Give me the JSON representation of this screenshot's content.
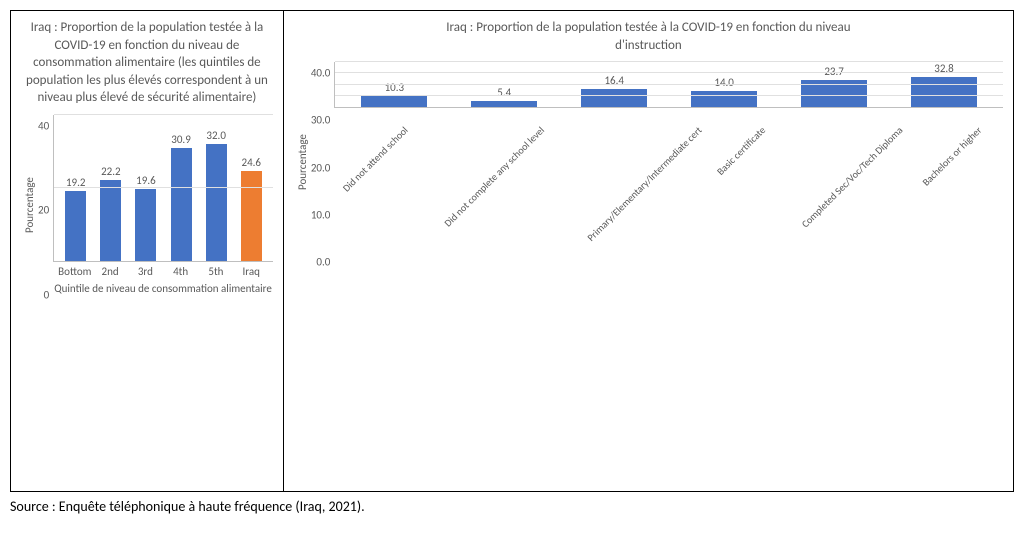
{
  "source_text": "Source : Enquête téléphonique à haute fréquence (Iraq, 2021).",
  "chart_left": {
    "type": "bar",
    "title": "Iraq : Proportion de la population testée à la COVID-19 en fonction du niveau de consommation alimentaire\n(les quintiles de population les plus élevés correspondent à un niveau plus élevé de sécurité alimentaire)",
    "y_label": "Pourcentage",
    "x_label": "Quintile de niveau de consommation alimentaire",
    "ymin": 0,
    "ymax": 40,
    "ytick_step": 20,
    "yticks": [
      "0",
      "20",
      "40"
    ],
    "grid_color": "#e0e0e0",
    "axis_color": "#bfbfbf",
    "background_color": "#ffffff",
    "title_fontsize": 13,
    "label_fontsize": 11,
    "bar_width": 0.6,
    "categories": [
      "Bottom",
      "2nd",
      "3rd",
      "4th",
      "5th",
      "Iraq"
    ],
    "values": [
      19.2,
      22.2,
      19.6,
      30.9,
      32.0,
      24.6
    ],
    "bar_colors": [
      "#4472c4",
      "#4472c4",
      "#4472c4",
      "#4472c4",
      "#4472c4",
      "#ed7d31"
    ]
  },
  "chart_right": {
    "type": "bar",
    "title": "Iraq : Proportion de la population testée à la COVID-19 en fonction du niveau d'instruction",
    "y_label": "Pourcentage",
    "ymin": 0,
    "ymax": 40,
    "ytick_step": 10,
    "yticks": [
      "0.0",
      "10.0",
      "20.0",
      "30.0",
      "40.0"
    ],
    "grid_color": "#e0e0e0",
    "axis_color": "#bfbfbf",
    "background_color": "#ffffff",
    "title_fontsize": 13,
    "label_fontsize": 11,
    "bar_width": 0.6,
    "categories": [
      "Did not attend school",
      "Did not complete any school level",
      "Primary/Elementary/Intermediate cert",
      "Basic certificate",
      "Completed Sec/Voc/Tech Diploma",
      "Bachelors or higher"
    ],
    "values": [
      10.3,
      5.4,
      16.4,
      14.0,
      23.7,
      32.8
    ],
    "bar_colors": [
      "#4472c4",
      "#4472c4",
      "#4472c4",
      "#4472c4",
      "#4472c4",
      "#4472c4"
    ]
  }
}
